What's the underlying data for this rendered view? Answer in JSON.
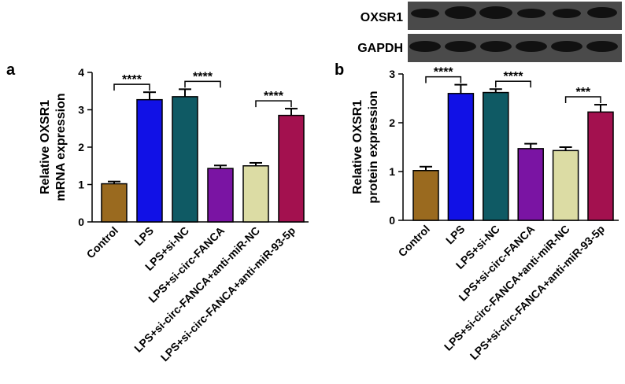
{
  "blot": {
    "labels": [
      "OXSR1",
      "GAPDH"
    ]
  },
  "chart_data": [
    {
      "type": "bar",
      "panel_label": "a",
      "ylabel": [
        "Relative OXSR1",
        "mRNA expression"
      ],
      "categories": [
        "Control",
        "LPS",
        "LPS+si-NC",
        "LPS+si-circ-FANCA",
        "LPS+si-circ-FANCA+anti-miR-NC",
        "LPS+si-circ-FANCA+anti-miR-93-5p"
      ],
      "values": [
        1.02,
        3.27,
        3.35,
        1.43,
        1.5,
        2.85
      ],
      "errors": [
        0.06,
        0.2,
        0.2,
        0.08,
        0.08,
        0.18
      ],
      "colors": [
        "#9a6a1f",
        "#1111e6",
        "#0f5a64",
        "#7a14a3",
        "#dcdca4",
        "#a3114f"
      ],
      "ylim": [
        0,
        4
      ],
      "yticks": [
        0,
        1,
        2,
        3,
        4
      ],
      "annotations": [
        "****",
        "****",
        "****"
      ]
    },
    {
      "type": "bar",
      "panel_label": "b",
      "ylabel": [
        "Relative OXSR1",
        "protein expression"
      ],
      "categories": [
        "Control",
        "LPS",
        "LPS+si-NC",
        "LPS+si-circ-FANCA",
        "LPS+si-circ-FANCA+anti-miR-NC",
        "LPS+si-circ-FANCA+anti-miR-93-5p"
      ],
      "values": [
        1.02,
        2.6,
        2.62,
        1.47,
        1.43,
        2.22
      ],
      "errors": [
        0.08,
        0.18,
        0.07,
        0.1,
        0.07,
        0.15
      ],
      "colors": [
        "#9a6a1f",
        "#1111e6",
        "#0f5a64",
        "#7a14a3",
        "#dcdca4",
        "#a3114f"
      ],
      "ylim": [
        0,
        3
      ],
      "yticks": [
        0,
        1,
        2,
        3
      ],
      "annotations": [
        "****",
        "****",
        "***"
      ]
    }
  ]
}
